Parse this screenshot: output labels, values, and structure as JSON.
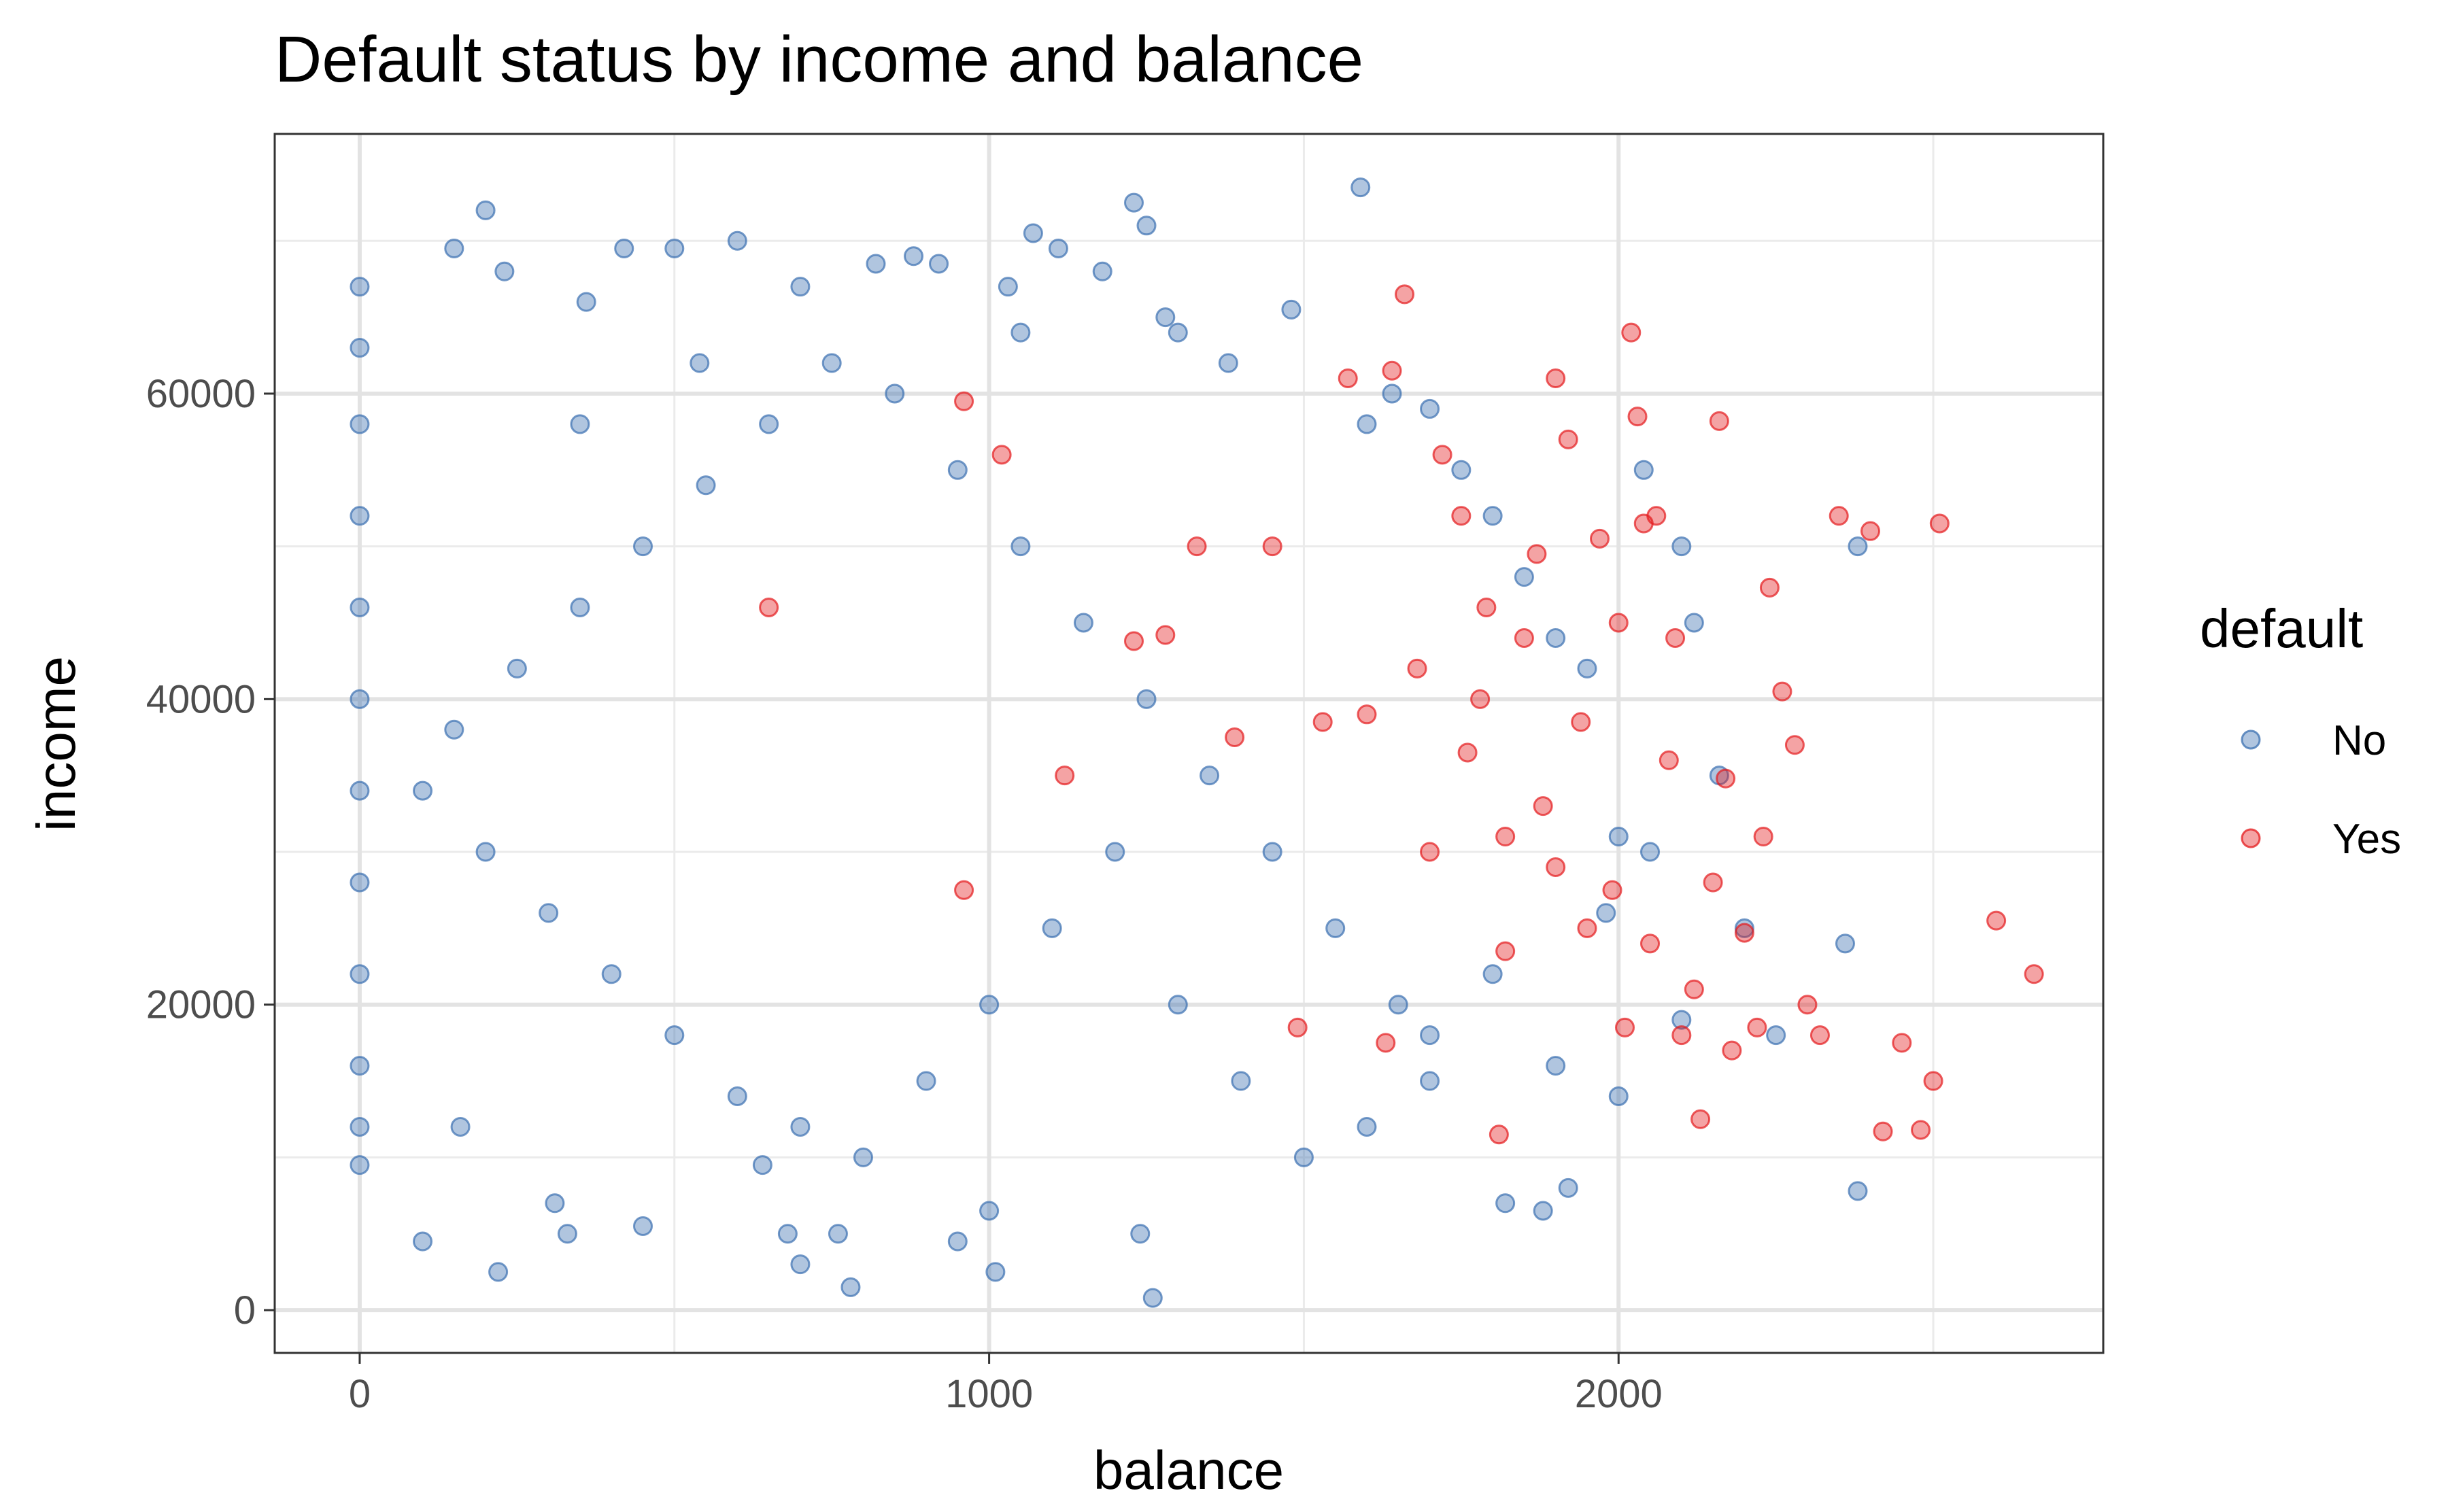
{
  "chart_data": {
    "type": "scatter",
    "title": "Default status by income and balance",
    "xlabel": "balance",
    "ylabel": "income",
    "xlim": [
      -135,
      2770
    ],
    "ylim": [
      -2800,
      77000
    ],
    "x_ticks": [
      0,
      1000,
      2000
    ],
    "y_ticks": [
      0,
      20000,
      40000,
      60000
    ],
    "grid": true,
    "legend": {
      "title": "default",
      "position": "right"
    },
    "series": [
      {
        "name": "No",
        "color": "#3a6fb0",
        "points": [
          [
            0,
            67000
          ],
          [
            0,
            63000
          ],
          [
            0,
            58000
          ],
          [
            0,
            52000
          ],
          [
            0,
            46000
          ],
          [
            0,
            40000
          ],
          [
            0,
            34000
          ],
          [
            0,
            28000
          ],
          [
            0,
            22000
          ],
          [
            0,
            16000
          ],
          [
            0,
            12000
          ],
          [
            0,
            9500
          ],
          [
            100,
            4500
          ],
          [
            150,
            69500
          ],
          [
            160,
            12000
          ],
          [
            200,
            72000
          ],
          [
            220,
            2500
          ],
          [
            230,
            68000
          ],
          [
            310,
            7000
          ],
          [
            330,
            5000
          ],
          [
            350,
            58000
          ],
          [
            360,
            66000
          ],
          [
            420,
            69500
          ],
          [
            450,
            5500
          ],
          [
            500,
            69500
          ],
          [
            540,
            62000
          ],
          [
            600,
            70000
          ],
          [
            640,
            9500
          ],
          [
            680,
            5000
          ],
          [
            700,
            3000
          ],
          [
            700,
            67000
          ],
          [
            760,
            5000
          ],
          [
            780,
            1500
          ],
          [
            820,
            68500
          ],
          [
            880,
            69000
          ],
          [
            920,
            68500
          ],
          [
            950,
            4500
          ],
          [
            1000,
            6500
          ],
          [
            1010,
            2500
          ],
          [
            1030,
            67000
          ],
          [
            1050,
            64000
          ],
          [
            1070,
            70500
          ],
          [
            1110,
            69500
          ],
          [
            1180,
            68000
          ],
          [
            1230,
            72500
          ],
          [
            1240,
            5000
          ],
          [
            1250,
            71000
          ],
          [
            1260,
            800
          ],
          [
            1280,
            65000
          ],
          [
            1300,
            64000
          ],
          [
            1380,
            62000
          ],
          [
            1480,
            65500
          ],
          [
            1590,
            73500
          ],
          [
            1600,
            58000
          ],
          [
            1640,
            60000
          ],
          [
            1700,
            59000
          ],
          [
            1750,
            55000
          ],
          [
            1800,
            52000
          ],
          [
            1820,
            7000
          ],
          [
            1850,
            48000
          ],
          [
            1880,
            6500
          ],
          [
            1900,
            44000
          ],
          [
            1920,
            8000
          ],
          [
            1950,
            42000
          ],
          [
            1980,
            26000
          ],
          [
            2000,
            31000
          ],
          [
            2040,
            55000
          ],
          [
            2050,
            30000
          ],
          [
            2100,
            50000
          ],
          [
            2120,
            45000
          ],
          [
            2160,
            35000
          ],
          [
            2200,
            25000
          ],
          [
            2380,
            50000
          ],
          [
            2360,
            24000
          ],
          [
            2380,
            7800
          ],
          [
            1700,
            15000
          ],
          [
            1650,
            20000
          ],
          [
            1550,
            25000
          ],
          [
            1450,
            30000
          ],
          [
            1350,
            35000
          ],
          [
            1250,
            40000
          ],
          [
            1150,
            45000
          ],
          [
            1050,
            50000
          ],
          [
            950,
            55000
          ],
          [
            850,
            60000
          ],
          [
            750,
            62000
          ],
          [
            650,
            58000
          ],
          [
            550,
            54000
          ],
          [
            450,
            50000
          ],
          [
            350,
            46000
          ],
          [
            250,
            42000
          ],
          [
            150,
            38000
          ],
          [
            100,
            34000
          ],
          [
            200,
            30000
          ],
          [
            300,
            26000
          ],
          [
            400,
            22000
          ],
          [
            500,
            18000
          ],
          [
            600,
            14000
          ],
          [
            700,
            12000
          ],
          [
            800,
            10000
          ],
          [
            900,
            15000
          ],
          [
            1000,
            20000
          ],
          [
            1100,
            25000
          ],
          [
            1200,
            30000
          ],
          [
            1300,
            20000
          ],
          [
            1400,
            15000
          ],
          [
            1500,
            10000
          ],
          [
            1600,
            12000
          ],
          [
            1700,
            18000
          ],
          [
            1800,
            22000
          ],
          [
            1900,
            16000
          ],
          [
            2000,
            14000
          ],
          [
            2100,
            19000
          ],
          [
            2250,
            18000
          ]
        ]
      },
      {
        "name": "Yes",
        "color": "#e41a1c",
        "points": [
          [
            650,
            46000
          ],
          [
            960,
            27500
          ],
          [
            960,
            59500
          ],
          [
            1020,
            56000
          ],
          [
            1120,
            35000
          ],
          [
            1230,
            43800
          ],
          [
            1280,
            44200
          ],
          [
            1330,
            50000
          ],
          [
            1390,
            37500
          ],
          [
            1450,
            50000
          ],
          [
            1490,
            18500
          ],
          [
            1530,
            38500
          ],
          [
            1570,
            61000
          ],
          [
            1600,
            39000
          ],
          [
            1630,
            17500
          ],
          [
            1640,
            61500
          ],
          [
            1660,
            66500
          ],
          [
            1700,
            30000
          ],
          [
            1720,
            56000
          ],
          [
            1750,
            52000
          ],
          [
            1790,
            46000
          ],
          [
            1810,
            11500
          ],
          [
            1820,
            23500
          ],
          [
            1850,
            44000
          ],
          [
            1870,
            49500
          ],
          [
            1880,
            33000
          ],
          [
            1900,
            61000
          ],
          [
            1920,
            57000
          ],
          [
            1940,
            38500
          ],
          [
            1970,
            50500
          ],
          [
            1990,
            27500
          ],
          [
            2000,
            45000
          ],
          [
            2010,
            18500
          ],
          [
            2020,
            64000
          ],
          [
            2030,
            58500
          ],
          [
            2040,
            51500
          ],
          [
            2060,
            52000
          ],
          [
            2080,
            36000
          ],
          [
            2090,
            44000
          ],
          [
            2100,
            18000
          ],
          [
            2120,
            21000
          ],
          [
            2130,
            12500
          ],
          [
            2150,
            28000
          ],
          [
            2160,
            58200
          ],
          [
            2170,
            34800
          ],
          [
            2200,
            24700
          ],
          [
            2220,
            18500
          ],
          [
            2240,
            47300
          ],
          [
            2260,
            40500
          ],
          [
            2280,
            37000
          ],
          [
            2300,
            20000
          ],
          [
            2320,
            18000
          ],
          [
            2350,
            52000
          ],
          [
            2400,
            51000
          ],
          [
            2420,
            11700
          ],
          [
            2450,
            17500
          ],
          [
            2480,
            11800
          ],
          [
            2500,
            15000
          ],
          [
            2510,
            51500
          ],
          [
            2600,
            25500
          ],
          [
            2660,
            22000
          ],
          [
            1760,
            36500
          ],
          [
            1820,
            31000
          ],
          [
            1900,
            29000
          ],
          [
            1950,
            25000
          ],
          [
            2050,
            24000
          ],
          [
            2180,
            17000
          ],
          [
            2230,
            31000
          ],
          [
            1680,
            42000
          ],
          [
            1780,
            40000
          ]
        ]
      }
    ]
  }
}
